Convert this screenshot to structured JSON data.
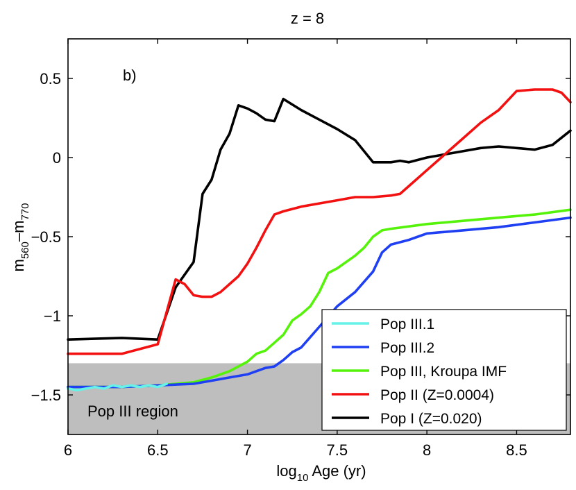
{
  "chart_data": {
    "type": "line",
    "title": "z = 8",
    "xlabel": {
      "prefix": "log",
      "sub": "10",
      "suffix": " Age (yr)"
    },
    "ylabel": {
      "m1": "m",
      "sub1": "560",
      "dash": "–",
      "m2": "m",
      "sub2": "770"
    },
    "xlim": [
      6.0,
      8.8
    ],
    "ylim": [
      -1.75,
      0.75
    ],
    "xticks": [
      6,
      6.5,
      7,
      7.5,
      8,
      8.5
    ],
    "xtick_labels": [
      "6",
      "6.5",
      "7",
      "7.5",
      "8",
      "8.5"
    ],
    "yticks": [
      0.5,
      0,
      -0.5,
      -1,
      -1.5
    ],
    "ytick_labels": [
      "0.5",
      "0",
      "−0.5",
      "−1",
      "−1.5"
    ],
    "panel_label": "b)",
    "region": {
      "label": "Pop III region",
      "y_from": -1.75,
      "y_to": -1.3,
      "color": "#bebebe"
    },
    "legend_position": "bottom-right",
    "series": [
      {
        "name": "Pop III.1",
        "color": "#66f2e8",
        "x": [
          6.0,
          6.05,
          6.1,
          6.15,
          6.2,
          6.25,
          6.3,
          6.35,
          6.4,
          6.45,
          6.5,
          6.55
        ],
        "y": [
          -1.46,
          -1.47,
          -1.46,
          -1.45,
          -1.46,
          -1.44,
          -1.45,
          -1.44,
          -1.45,
          -1.44,
          -1.45,
          -1.43
        ]
      },
      {
        "name": "Pop III.2",
        "color": "#1f3ff2",
        "x": [
          6.0,
          6.3,
          6.5,
          6.7,
          6.8,
          6.9,
          7.0,
          7.05,
          7.1,
          7.15,
          7.2,
          7.25,
          7.3,
          7.4,
          7.5,
          7.6,
          7.7,
          7.75,
          7.8,
          7.9,
          7.95,
          8.0,
          8.2,
          8.4,
          8.6,
          8.8
        ],
        "y": [
          -1.45,
          -1.45,
          -1.44,
          -1.43,
          -1.41,
          -1.39,
          -1.37,
          -1.35,
          -1.33,
          -1.32,
          -1.28,
          -1.23,
          -1.2,
          -1.07,
          -0.94,
          -0.85,
          -0.72,
          -0.6,
          -0.55,
          -0.52,
          -0.5,
          -0.48,
          -0.46,
          -0.44,
          -0.41,
          -0.38
        ]
      },
      {
        "name": "Pop III, Kroupa IMF",
        "color": "#55f20a",
        "x": [
          6.0,
          6.3,
          6.5,
          6.7,
          6.8,
          6.9,
          7.0,
          7.05,
          7.1,
          7.15,
          7.2,
          7.25,
          7.3,
          7.35,
          7.4,
          7.45,
          7.5,
          7.6,
          7.65,
          7.7,
          7.75,
          7.8,
          8.0,
          8.2,
          8.4,
          8.6,
          8.8
        ],
        "y": [
          -1.45,
          -1.45,
          -1.44,
          -1.42,
          -1.39,
          -1.35,
          -1.29,
          -1.24,
          -1.22,
          -1.17,
          -1.12,
          -1.03,
          -0.99,
          -0.94,
          -0.85,
          -0.73,
          -0.7,
          -0.62,
          -0.57,
          -0.5,
          -0.46,
          -0.45,
          -0.42,
          -0.4,
          -0.38,
          -0.36,
          -0.33
        ]
      },
      {
        "name": "Pop II (Z=0.0004)",
        "color": "#f21010",
        "x": [
          6.0,
          6.3,
          6.5,
          6.6,
          6.65,
          6.7,
          6.75,
          6.8,
          6.85,
          6.9,
          6.95,
          7.0,
          7.05,
          7.1,
          7.15,
          7.2,
          7.3,
          7.4,
          7.5,
          7.6,
          7.7,
          7.8,
          7.85,
          7.9,
          8.0,
          8.1,
          8.2,
          8.3,
          8.4,
          8.5,
          8.6,
          8.7,
          8.75,
          8.8
        ],
        "y": [
          -1.24,
          -1.24,
          -1.18,
          -0.77,
          -0.8,
          -0.87,
          -0.88,
          -0.88,
          -0.85,
          -0.8,
          -0.75,
          -0.67,
          -0.57,
          -0.46,
          -0.36,
          -0.34,
          -0.31,
          -0.29,
          -0.27,
          -0.25,
          -0.25,
          -0.24,
          -0.23,
          -0.18,
          -0.08,
          0.02,
          0.12,
          0.22,
          0.3,
          0.42,
          0.43,
          0.43,
          0.41,
          0.35
        ]
      },
      {
        "name": "Pop I (Z=0.020)",
        "color": "#000000",
        "x": [
          6.0,
          6.3,
          6.5,
          6.6,
          6.7,
          6.75,
          6.8,
          6.85,
          6.9,
          6.95,
          7.0,
          7.05,
          7.1,
          7.15,
          7.2,
          7.3,
          7.4,
          7.5,
          7.6,
          7.7,
          7.8,
          7.85,
          7.9,
          8.0,
          8.1,
          8.2,
          8.3,
          8.4,
          8.5,
          8.6,
          8.7,
          8.8
        ],
        "y": [
          -1.15,
          -1.14,
          -1.15,
          -0.82,
          -0.66,
          -0.23,
          -0.14,
          0.05,
          0.15,
          0.33,
          0.31,
          0.28,
          0.24,
          0.23,
          0.37,
          0.3,
          0.24,
          0.18,
          0.11,
          -0.03,
          -0.03,
          -0.02,
          -0.03,
          0.0,
          0.02,
          0.04,
          0.06,
          0.07,
          0.06,
          0.05,
          0.08,
          0.17
        ]
      }
    ]
  }
}
